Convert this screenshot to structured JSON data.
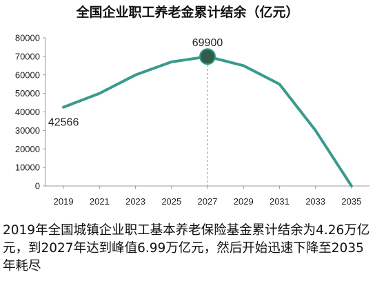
{
  "title": "全国企业职工养老金累计结余（亿元）",
  "caption": "2019年全国城镇企业职工基本养老保险基金累计结余为4.26万亿元，到2027年达到峰值6.99万亿元，然后开始迅速下降至2035年耗尽",
  "colors": {
    "line": "#3a9a8c",
    "peak_marker": "#2e5e4a",
    "axis": "#999999",
    "text": "#222222"
  },
  "chart_data": {
    "type": "line",
    "title": "全国企业职工养老金累计结余（亿元）",
    "x_ticks": [
      "2019",
      "2021",
      "2023",
      "2025",
      "2027",
      "2029",
      "2031",
      "2033",
      "2035"
    ],
    "y_ticks": [
      "0",
      "10000",
      "20000",
      "30000",
      "40000",
      "50000",
      "60000",
      "70000",
      "80000"
    ],
    "ylim": [
      0,
      80000
    ],
    "xlim": [
      2018,
      2036
    ],
    "grid": false,
    "series": [
      {
        "x": [
          2019,
          2021,
          2023,
          2025,
          2027,
          2029,
          2031,
          2033,
          2035
        ],
        "y": [
          42566,
          50000,
          60000,
          67000,
          69900,
          65000,
          55000,
          30000,
          0
        ]
      }
    ],
    "annotations": [
      {
        "x": 2019,
        "y": 42566,
        "text": "42566"
      },
      {
        "x": 2027,
        "y": 69900,
        "text": "69900"
      }
    ],
    "peak_guide": {
      "x": 2027,
      "style": "dashed"
    }
  }
}
